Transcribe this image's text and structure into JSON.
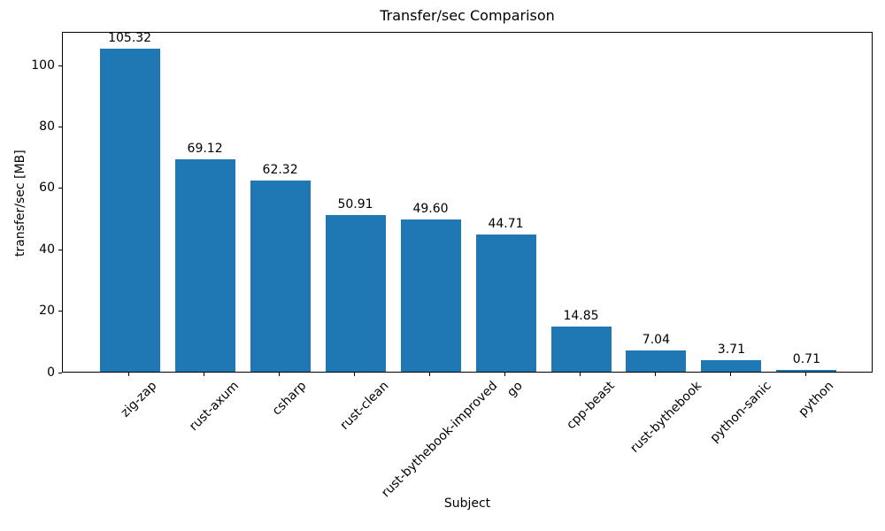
{
  "chart_data": {
    "type": "bar",
    "title": "Transfer/sec Comparison",
    "xlabel": "Subject",
    "ylabel": "transfer/sec [MB]",
    "categories": [
      "zig-zap",
      "rust-axum",
      "csharp",
      "rust-clean",
      "rust-bythebook-improved",
      "go",
      "cpp-beast",
      "rust-bythebook",
      "python-sanic",
      "python"
    ],
    "values": [
      105.32,
      69.12,
      62.32,
      50.91,
      49.6,
      44.71,
      14.85,
      7.04,
      3.71,
      0.71
    ],
    "value_labels": [
      "105.32",
      "69.12",
      "62.32",
      "50.91",
      "49.60",
      "44.71",
      "14.85",
      "7.04",
      "3.71",
      "0.71"
    ],
    "yticks": [
      0,
      20,
      40,
      60,
      80,
      100
    ],
    "ylim": [
      0,
      111
    ],
    "bar_color": "#1f77b4",
    "axis_color": "#000000",
    "grid": false,
    "legend_position": "none"
  }
}
